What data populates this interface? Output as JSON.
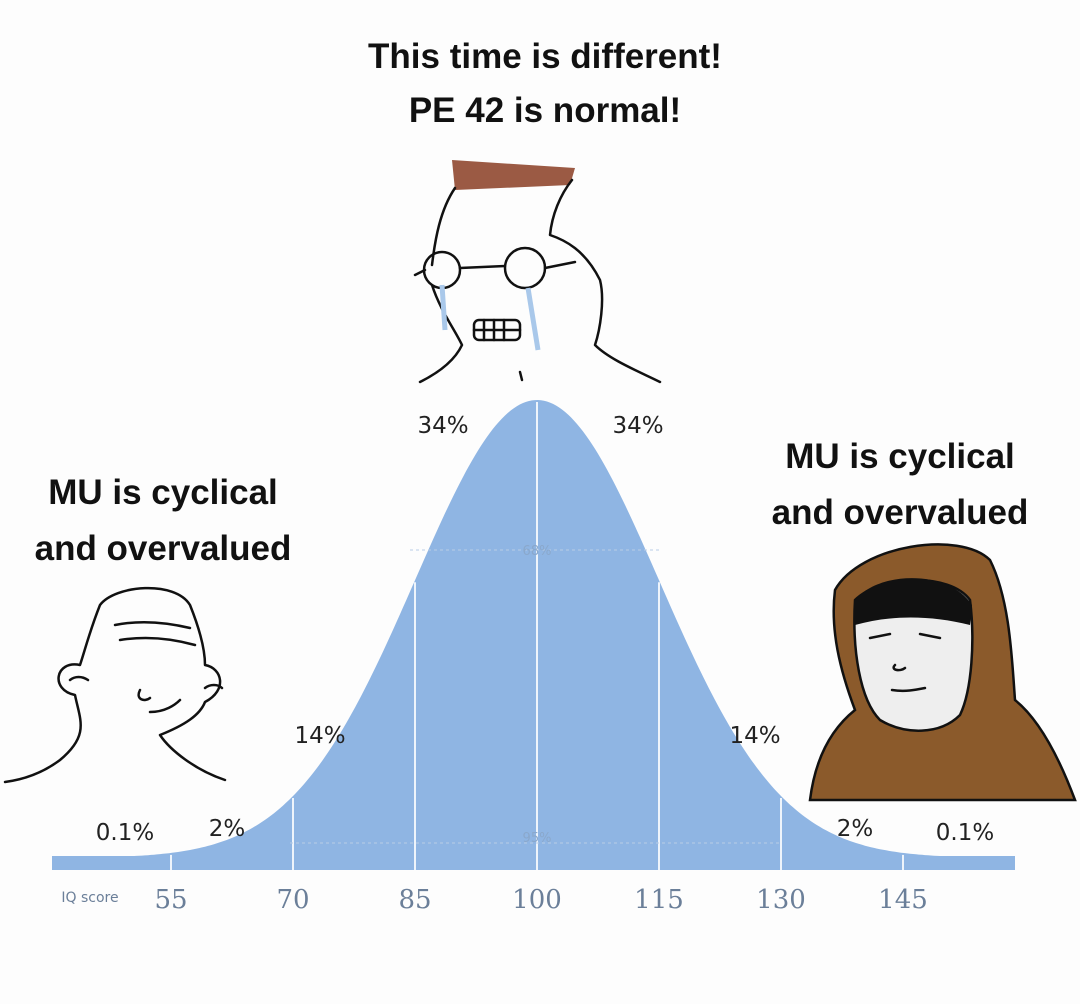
{
  "top_caption": [
    "This time is different!",
    "PE 42 is normal!"
  ],
  "left_caption": [
    "MU is cyclical",
    "and overvalued"
  ],
  "right_caption": [
    "MU is cyclical",
    "and overvalued"
  ],
  "curve": {
    "segment_labels": [
      "0.1%",
      "2%",
      "14%",
      "34%",
      "34%",
      "14%",
      "2%",
      "0.1%"
    ],
    "band_labels": [
      "68%",
      "95%"
    ],
    "axis_label": "IQ score",
    "axis_ticks": [
      "55",
      "70",
      "85",
      "100",
      "115",
      "130",
      "145"
    ]
  }
}
